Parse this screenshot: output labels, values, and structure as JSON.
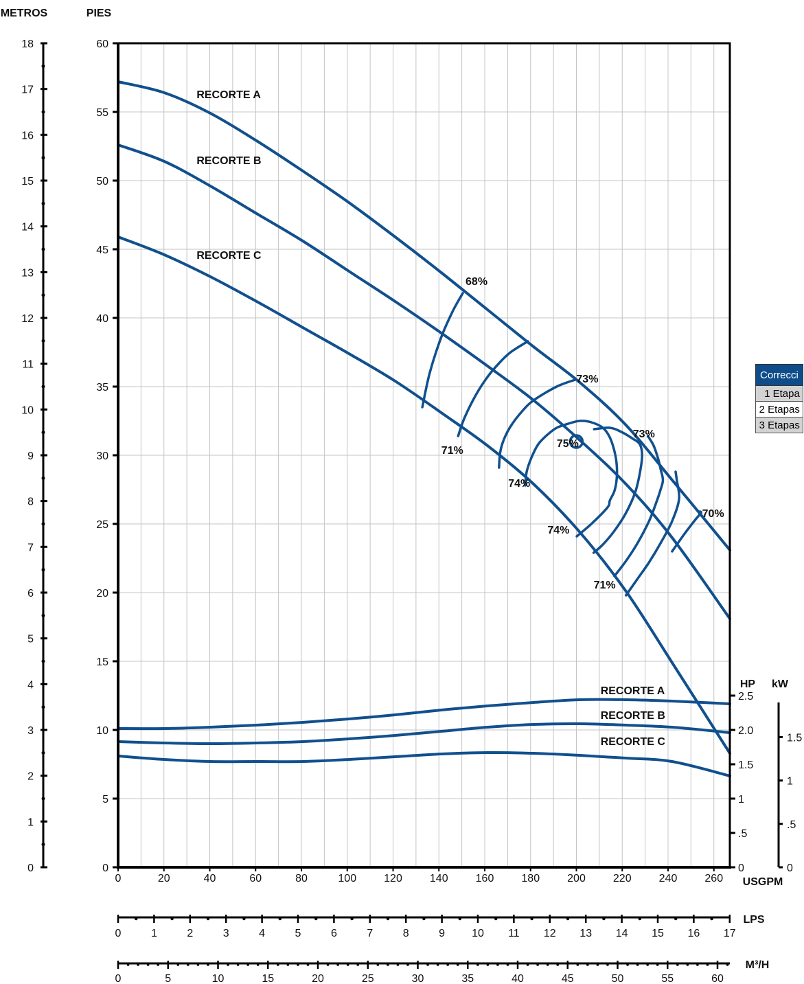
{
  "chart_data": {
    "type": "line",
    "colors": {
      "curve": "#11508e",
      "grid": "#c4c4c4",
      "axis": "#000000",
      "table_header": "#0f4c8a"
    },
    "axes": {
      "metros": {
        "label": "METROS",
        "range": [
          0,
          18
        ],
        "ticks": [
          "0",
          "1",
          "2",
          "3",
          "4",
          "5",
          "6",
          "7",
          "8",
          "9",
          "10",
          "11",
          "12",
          "13",
          "14",
          "15",
          "16",
          "17",
          "18"
        ]
      },
      "pies": {
        "label": "PIES",
        "range": [
          0,
          60
        ],
        "ticks": [
          "0",
          "5",
          "10",
          "15",
          "20",
          "25",
          "30",
          "35",
          "40",
          "45",
          "50",
          "55",
          "60"
        ]
      },
      "usgpm": {
        "label": "USGPM",
        "range": [
          0,
          265
        ],
        "ticks": [
          "0",
          "20",
          "40",
          "60",
          "80",
          "100",
          "120",
          "140",
          "160",
          "180",
          "200",
          "220",
          "240",
          "260"
        ]
      },
      "lps": {
        "label": "LPS",
        "range": [
          0,
          17
        ],
        "ticks": [
          "0",
          "1",
          "2",
          "3",
          "4",
          "5",
          "6",
          "7",
          "8",
          "9",
          "10",
          "11",
          "12",
          "13",
          "14",
          "15",
          "16",
          "17"
        ]
      },
      "m3h": {
        "label": "M³/H",
        "range": [
          0,
          60
        ],
        "ticks": [
          "0",
          "5",
          "10",
          "15",
          "20",
          "25",
          "30",
          "35",
          "40",
          "45",
          "50",
          "55",
          "60"
        ]
      },
      "hp": {
        "label": "HP",
        "range": [
          0,
          2.5
        ],
        "ticks": [
          "0",
          ".5",
          "1",
          "1.5",
          "2.0",
          "2.5"
        ]
      },
      "kw": {
        "label": "kW",
        "range": [
          0,
          1.9
        ],
        "ticks": [
          "0",
          ".5",
          "1",
          "1.5"
        ]
      }
    },
    "head_series": [
      {
        "name": "RECORTE A",
        "x": [
          0,
          20,
          40,
          60,
          80,
          100,
          120,
          140,
          160,
          180,
          200,
          220,
          240,
          265
        ],
        "y": [
          57.2,
          56.4,
          54.9,
          52.9,
          50.7,
          48.4,
          45.9,
          43.3,
          40.6,
          37.9,
          35.3,
          32.2,
          28.2,
          23.1
        ]
      },
      {
        "name": "RECORTE B",
        "x": [
          0,
          20,
          40,
          60,
          80,
          100,
          120,
          140,
          160,
          180,
          200,
          220,
          240,
          265
        ],
        "y": [
          52.6,
          51.4,
          49.6,
          47.6,
          45.6,
          43.4,
          41.2,
          38.9,
          36.5,
          34.0,
          31.1,
          27.9,
          24.0,
          18.1
        ]
      },
      {
        "name": "RECORTE C",
        "x": [
          0,
          20,
          40,
          60,
          80,
          100,
          120,
          140,
          160,
          180,
          200,
          220,
          240,
          265
        ],
        "y": [
          45.9,
          44.6,
          43.0,
          41.2,
          39.3,
          37.4,
          35.4,
          33.1,
          30.7,
          27.9,
          24.4,
          20.1,
          14.9,
          8.3
        ]
      }
    ],
    "power_series": [
      {
        "name": "RECORTE A",
        "x": [
          0,
          20,
          40,
          60,
          80,
          100,
          120,
          140,
          160,
          180,
          200,
          220,
          240,
          265
        ],
        "y": [
          2.02,
          2.02,
          2.04,
          2.07,
          2.11,
          2.16,
          2.22,
          2.29,
          2.35,
          2.4,
          2.44,
          2.44,
          2.42,
          2.38
        ]
      },
      {
        "name": "RECORTE B",
        "x": [
          0,
          20,
          40,
          60,
          80,
          100,
          120,
          140,
          160,
          180,
          200,
          220,
          240,
          265
        ],
        "y": [
          1.83,
          1.81,
          1.8,
          1.81,
          1.83,
          1.87,
          1.92,
          1.98,
          2.04,
          2.08,
          2.09,
          2.07,
          2.04,
          1.96
        ]
      },
      {
        "name": "RECORTE C",
        "x": [
          0,
          20,
          40,
          60,
          80,
          100,
          120,
          140,
          160,
          180,
          200,
          220,
          240,
          265
        ],
        "y": [
          1.62,
          1.57,
          1.54,
          1.54,
          1.54,
          1.57,
          1.61,
          1.65,
          1.67,
          1.66,
          1.63,
          1.59,
          1.54,
          1.33
        ]
      }
    ],
    "efficiency_contours": [
      {
        "x": [
          131.8,
          135,
          140,
          145,
          149.3
        ],
        "y": [
          33.5,
          36.0,
          38.6,
          40.5,
          41.8
        ]
      },
      {
        "x": [
          147.3,
          150,
          155,
          160,
          165,
          170,
          177.5
        ],
        "y": [
          31.4,
          32.7,
          34.4,
          35.7,
          36.7,
          37.5,
          38.3
        ]
      },
      {
        "x": [
          165,
          165.5,
          167,
          170,
          175,
          180,
          190,
          198
        ],
        "y": [
          29.1,
          30.2,
          31.1,
          32.1,
          33.2,
          34.0,
          35.0,
          35.5
        ]
      },
      {
        "x": [
          176.3,
          177,
          179,
          182,
          186,
          190,
          195,
          200,
          205,
          210,
          213,
          215,
          216,
          216,
          215,
          213,
          212,
          205,
          198.7
        ],
        "y": [
          27.8,
          28.8,
          29.8,
          30.8,
          31.5,
          32.0,
          32.3,
          32.5,
          32.4,
          32.0,
          31.3,
          30.3,
          29.3,
          28.3,
          27.4,
          26.7,
          26.2,
          25.0,
          24.1
        ]
      },
      {
        "x": [
          206,
          210,
          215,
          220,
          224,
          226,
          227,
          226,
          223,
          218,
          213,
          206.2
        ],
        "y": [
          22.9,
          23.5,
          24.5,
          25.8,
          27.3,
          28.7,
          30.0,
          30.8,
          31.2,
          31.7,
          32.0,
          31.9
        ]
      },
      {
        "x": [
          215,
          220,
          225,
          230,
          233,
          235,
          236,
          235,
          234,
          232,
          229.5
        ],
        "y": [
          21.2,
          22.3,
          23.6,
          25.2,
          26.5,
          27.5,
          28.2,
          29.0,
          29.7,
          30.7,
          31.4
        ]
      },
      {
        "x": [
          220,
          225,
          230,
          235,
          240,
          243,
          242,
          241.5
        ],
        "y": [
          19.8,
          21.0,
          22.2,
          23.6,
          25.2,
          26.8,
          28.2,
          28.8
        ]
      },
      {
        "x": [
          240,
          245,
          250,
          252.5,
          252.0
        ],
        "y": [
          23.0,
          24.2,
          25.3,
          25.8,
          25.9
        ]
      }
    ],
    "bep": {
      "x": 198.5,
      "y": 31.0,
      "label": "75%"
    },
    "annotations": [
      {
        "text": "RECORTE A",
        "x": 34,
        "y": 56.0
      },
      {
        "text": "RECORTE B",
        "x": 34,
        "y": 51.2
      },
      {
        "text": "RECORTE C",
        "x": 34,
        "y": 44.3
      },
      {
        "text": "68%",
        "x": 150.5,
        "y": 42.4
      },
      {
        "text": "73%",
        "x": 198.5,
        "y": 35.3
      },
      {
        "text": "73%",
        "x": 223,
        "y": 31.3
      },
      {
        "text": "70%",
        "x": 253,
        "y": 25.5
      },
      {
        "text": "71%",
        "x": 140,
        "y": 30.1
      },
      {
        "text": "75%",
        "x": 190,
        "y": 30.6
      },
      {
        "text": "74%",
        "x": 169,
        "y": 27.7
      },
      {
        "text": "74%",
        "x": 186,
        "y": 24.3
      },
      {
        "text": "71%",
        "x": 206,
        "y": 20.3
      }
    ],
    "power_labels": [
      {
        "text": "RECORTE A",
        "x": 209,
        "y": 2.52
      },
      {
        "text": "RECORTE B",
        "x": 209,
        "y": 2.16
      },
      {
        "text": "RECORTE C",
        "x": 209,
        "y": 1.78
      }
    ]
  },
  "correction_table": {
    "header": "Correcci",
    "rows": [
      "1 Etapa",
      "2 Etapas",
      "3 Etapas"
    ]
  }
}
